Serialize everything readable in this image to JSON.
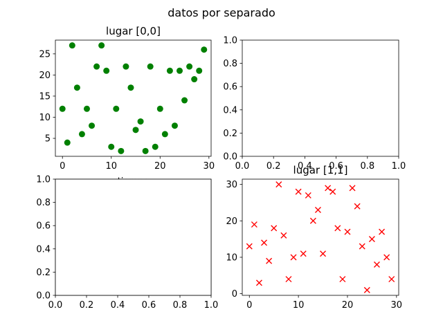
{
  "figure": {
    "suptitle": "datos por separado"
  },
  "chart_data": [
    {
      "type": "scatter",
      "panel": "top-left",
      "title": "lugar [0,0]",
      "xlabel": "tiempo",
      "ylabel": "",
      "xlim": [
        -1.45,
        30.45
      ],
      "ylim": [
        0.75,
        28.25
      ],
      "xticks": [
        0,
        10,
        20,
        30
      ],
      "yticks": [
        5,
        10,
        15,
        20,
        25
      ],
      "marker": "circle",
      "color": "#008000",
      "x": [
        0,
        1,
        2,
        3,
        4,
        5,
        6,
        7,
        8,
        9,
        10,
        11,
        12,
        13,
        14,
        15,
        16,
        17,
        18,
        19,
        20,
        21,
        22,
        23,
        24,
        25,
        26,
        27,
        28,
        29
      ],
      "y": [
        12,
        4,
        27,
        17,
        6,
        12,
        8,
        22,
        27,
        21,
        3,
        12,
        2,
        22,
        17,
        7,
        9,
        2,
        22,
        3,
        12,
        6,
        21,
        8,
        21,
        14,
        22,
        19,
        21,
        26
      ]
    },
    {
      "type": "empty",
      "panel": "top-right",
      "xlim": [
        0,
        1
      ],
      "ylim": [
        0,
        1
      ],
      "xticks": [
        0.0,
        0.2,
        0.4,
        0.6,
        0.8,
        1.0
      ],
      "yticks": [
        0.0,
        0.2,
        0.4,
        0.6,
        0.8,
        1.0
      ]
    },
    {
      "type": "empty",
      "panel": "bottom-left",
      "xlim": [
        0,
        1
      ],
      "ylim": [
        0,
        1
      ],
      "xticks": [
        0.0,
        0.2,
        0.4,
        0.6,
        0.8,
        1.0
      ],
      "yticks": [
        0.0,
        0.2,
        0.4,
        0.6,
        0.8,
        1.0
      ]
    },
    {
      "type": "scatter",
      "panel": "bottom-right",
      "title": "lugar [1,1]",
      "xlabel": "",
      "ylabel": "",
      "xlim": [
        -1.45,
        30.45
      ],
      "ylim": [
        -0.45,
        31.45
      ],
      "xticks": [
        0,
        10,
        20,
        30
      ],
      "yticks": [
        0,
        10,
        20,
        30
      ],
      "marker": "x",
      "color": "#ff0000",
      "x": [
        0,
        1,
        2,
        3,
        4,
        5,
        6,
        7,
        8,
        9,
        10,
        11,
        12,
        13,
        14,
        15,
        16,
        17,
        18,
        19,
        20,
        21,
        22,
        23,
        24,
        25,
        26,
        27,
        28,
        29
      ],
      "y": [
        13,
        19,
        3,
        14,
        9,
        18,
        30,
        16,
        4,
        10,
        28,
        11,
        27,
        20,
        23,
        11,
        29,
        28,
        18,
        4,
        17,
        29,
        24,
        13,
        1,
        15,
        8,
        17,
        10,
        4
      ]
    }
  ]
}
